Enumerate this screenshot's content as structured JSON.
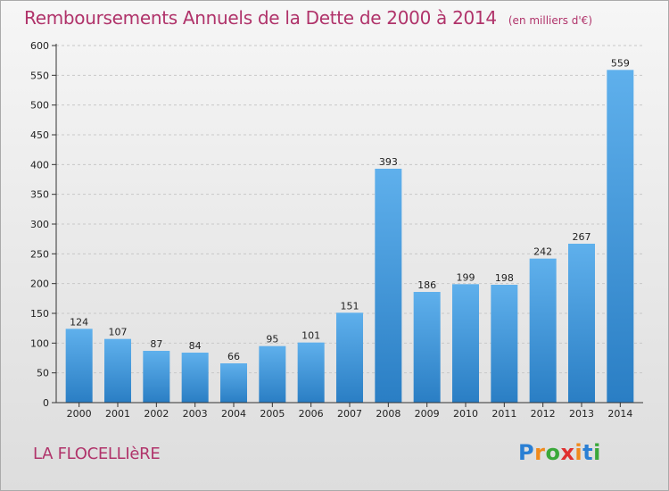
{
  "chart_data": {
    "type": "bar",
    "title": "Remboursements Annuels de la Dette de 2000 à 2014",
    "subtitle": "(en milliers d'€)",
    "xlabel": "",
    "ylabel": "",
    "categories": [
      "2000",
      "2001",
      "2002",
      "2003",
      "2004",
      "2005",
      "2006",
      "2007",
      "2008",
      "2009",
      "2010",
      "2011",
      "2012",
      "2013",
      "2014"
    ],
    "values": [
      124,
      107,
      87,
      84,
      66,
      95,
      101,
      151,
      393,
      186,
      199,
      198,
      242,
      267,
      559
    ],
    "value_labels": [
      "124",
      "107",
      "87",
      "84",
      "66",
      "95",
      "101",
      "151",
      "393",
      "186",
      "199",
      "198",
      "242",
      "267",
      "559"
    ],
    "ylim": [
      0,
      600
    ],
    "yticks": [
      0,
      50,
      100,
      150,
      200,
      250,
      300,
      350,
      400,
      450,
      500,
      550,
      600
    ],
    "grid": "horizontal dashed",
    "legend": "none"
  },
  "place_name": "LA FLOCELLIèRE",
  "logo": {
    "text": "Proxiti",
    "letter_colors": [
      "#2a7fd4",
      "#f08a1c",
      "#3aa83a",
      "#e03030",
      "#f08a1c",
      "#2a7fd4",
      "#3aa83a"
    ]
  },
  "colors": {
    "title": "#b0336a",
    "bar_light": "#5fb0ec",
    "bar_dark": "#2a7ec4",
    "grid": "#c8c8c8",
    "axis": "#333333",
    "text": "#222222"
  }
}
